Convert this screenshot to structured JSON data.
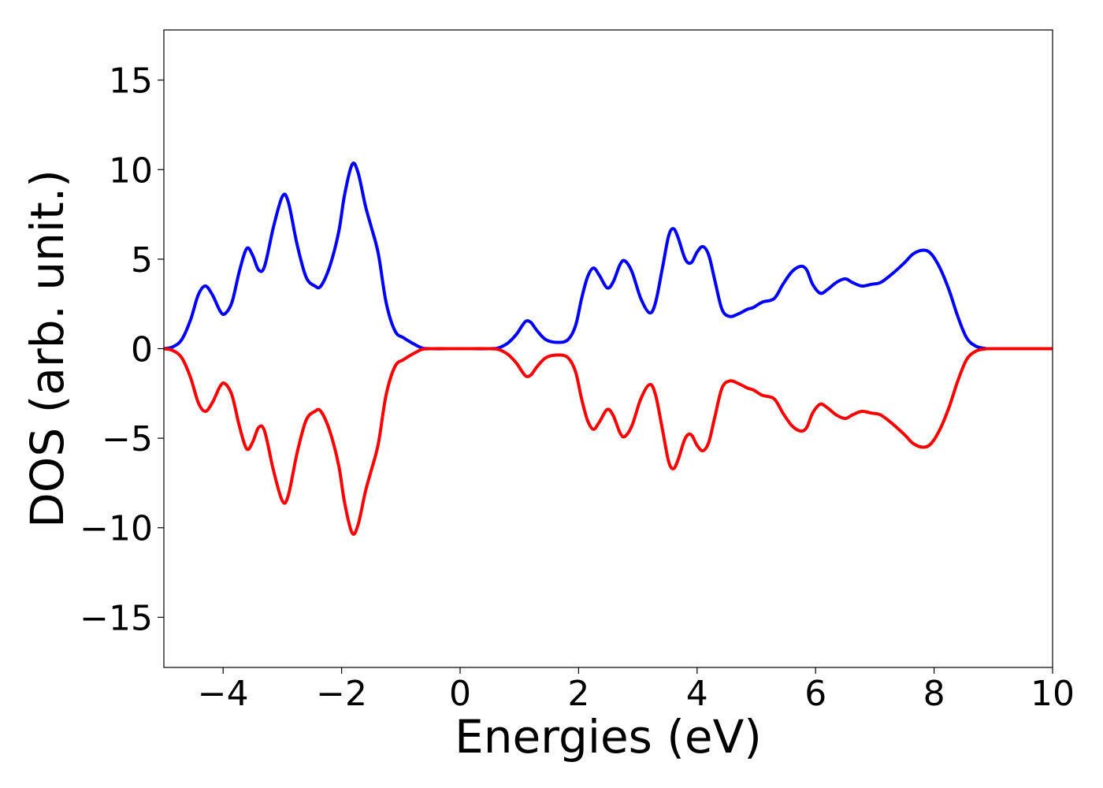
{
  "chart_data": {
    "type": "line",
    "title": "",
    "xlabel": "Energies (eV)",
    "ylabel": "DOS (arb. unit.)",
    "xlim": [
      -5,
      10
    ],
    "ylim": [
      -17.8,
      17.8
    ],
    "grid": false,
    "legend": "none",
    "x_ticks": [
      -4,
      -2,
      0,
      2,
      4,
      6,
      8,
      10
    ],
    "x_tick_labels": [
      "−4",
      "−2",
      "0",
      "2",
      "4",
      "6",
      "8",
      "10"
    ],
    "y_ticks": [
      15,
      10,
      5,
      0,
      -5,
      -10,
      -15
    ],
    "y_tick_labels": [
      "15",
      "10",
      "5",
      "0",
      "−5",
      "−10",
      "−15"
    ],
    "series": [
      {
        "color": "#0000ff",
        "points": [
          [
            -5.0,
            0.0
          ],
          [
            -4.85,
            0.1
          ],
          [
            -4.7,
            0.5
          ],
          [
            -4.55,
            1.6
          ],
          [
            -4.42,
            3.0
          ],
          [
            -4.3,
            3.5
          ],
          [
            -4.18,
            3.0
          ],
          [
            -4.05,
            2.1
          ],
          [
            -3.97,
            1.95
          ],
          [
            -3.85,
            2.6
          ],
          [
            -3.72,
            4.4
          ],
          [
            -3.6,
            5.6
          ],
          [
            -3.5,
            5.2
          ],
          [
            -3.4,
            4.4
          ],
          [
            -3.3,
            4.6
          ],
          [
            -3.15,
            6.8
          ],
          [
            -3.0,
            8.5
          ],
          [
            -2.9,
            8.2
          ],
          [
            -2.75,
            5.8
          ],
          [
            -2.6,
            4.0
          ],
          [
            -2.45,
            3.5
          ],
          [
            -2.35,
            3.5
          ],
          [
            -2.2,
            4.6
          ],
          [
            -2.05,
            6.5
          ],
          [
            -1.95,
            8.6
          ],
          [
            -1.82,
            10.3
          ],
          [
            -1.72,
            9.8
          ],
          [
            -1.6,
            8.0
          ],
          [
            -1.5,
            6.8
          ],
          [
            -1.38,
            5.3
          ],
          [
            -1.25,
            2.6
          ],
          [
            -1.1,
            1.0
          ],
          [
            -0.95,
            0.6
          ],
          [
            -0.8,
            0.3
          ],
          [
            -0.65,
            0.05
          ],
          [
            -0.5,
            0.0
          ],
          [
            0.0,
            0.0
          ],
          [
            0.5,
            0.0
          ],
          [
            0.65,
            0.05
          ],
          [
            0.8,
            0.3
          ],
          [
            0.95,
            0.8
          ],
          [
            1.05,
            1.3
          ],
          [
            1.12,
            1.55
          ],
          [
            1.2,
            1.45
          ],
          [
            1.3,
            1.0
          ],
          [
            1.45,
            0.5
          ],
          [
            1.65,
            0.35
          ],
          [
            1.82,
            0.5
          ],
          [
            1.95,
            1.3
          ],
          [
            2.05,
            2.8
          ],
          [
            2.15,
            4.0
          ],
          [
            2.25,
            4.5
          ],
          [
            2.35,
            4.1
          ],
          [
            2.48,
            3.4
          ],
          [
            2.58,
            3.7
          ],
          [
            2.7,
            4.7
          ],
          [
            2.78,
            4.9
          ],
          [
            2.9,
            4.3
          ],
          [
            3.05,
            2.8
          ],
          [
            3.2,
            2.0
          ],
          [
            3.3,
            2.6
          ],
          [
            3.42,
            4.6
          ],
          [
            3.52,
            6.3
          ],
          [
            3.6,
            6.7
          ],
          [
            3.68,
            6.2
          ],
          [
            3.8,
            5.0
          ],
          [
            3.9,
            4.8
          ],
          [
            4.0,
            5.4
          ],
          [
            4.1,
            5.7
          ],
          [
            4.2,
            5.2
          ],
          [
            4.3,
            3.8
          ],
          [
            4.42,
            2.2
          ],
          [
            4.55,
            1.8
          ],
          [
            4.7,
            1.95
          ],
          [
            4.85,
            2.2
          ],
          [
            4.95,
            2.3
          ],
          [
            5.1,
            2.6
          ],
          [
            5.3,
            2.8
          ],
          [
            5.45,
            3.6
          ],
          [
            5.6,
            4.3
          ],
          [
            5.75,
            4.6
          ],
          [
            5.85,
            4.4
          ],
          [
            5.95,
            3.6
          ],
          [
            6.08,
            3.1
          ],
          [
            6.2,
            3.3
          ],
          [
            6.35,
            3.7
          ],
          [
            6.5,
            3.9
          ],
          [
            6.62,
            3.7
          ],
          [
            6.78,
            3.5
          ],
          [
            6.95,
            3.6
          ],
          [
            7.1,
            3.7
          ],
          [
            7.3,
            4.2
          ],
          [
            7.5,
            4.8
          ],
          [
            7.65,
            5.3
          ],
          [
            7.82,
            5.5
          ],
          [
            7.95,
            5.3
          ],
          [
            8.1,
            4.5
          ],
          [
            8.25,
            3.3
          ],
          [
            8.4,
            1.8
          ],
          [
            8.55,
            0.6
          ],
          [
            8.7,
            0.15
          ],
          [
            8.85,
            0.02
          ],
          [
            9.0,
            0.0
          ],
          [
            10.0,
            0.0
          ]
        ]
      },
      {
        "color": "#ff0000",
        "points": [
          [
            -5.0,
            0.0
          ],
          [
            -4.85,
            -0.1
          ],
          [
            -4.7,
            -0.5
          ],
          [
            -4.55,
            -1.6
          ],
          [
            -4.42,
            -3.0
          ],
          [
            -4.3,
            -3.5
          ],
          [
            -4.18,
            -3.0
          ],
          [
            -4.05,
            -2.1
          ],
          [
            -3.97,
            -1.95
          ],
          [
            -3.85,
            -2.6
          ],
          [
            -3.72,
            -4.4
          ],
          [
            -3.6,
            -5.6
          ],
          [
            -3.5,
            -5.2
          ],
          [
            -3.4,
            -4.4
          ],
          [
            -3.3,
            -4.6
          ],
          [
            -3.15,
            -6.8
          ],
          [
            -3.0,
            -8.5
          ],
          [
            -2.9,
            -8.2
          ],
          [
            -2.75,
            -5.8
          ],
          [
            -2.6,
            -4.0
          ],
          [
            -2.45,
            -3.5
          ],
          [
            -2.35,
            -3.5
          ],
          [
            -2.2,
            -4.6
          ],
          [
            -2.05,
            -6.5
          ],
          [
            -1.95,
            -8.6
          ],
          [
            -1.82,
            -10.3
          ],
          [
            -1.72,
            -9.8
          ],
          [
            -1.6,
            -8.0
          ],
          [
            -1.5,
            -6.8
          ],
          [
            -1.38,
            -5.3
          ],
          [
            -1.25,
            -2.6
          ],
          [
            -1.1,
            -1.0
          ],
          [
            -0.95,
            -0.6
          ],
          [
            -0.8,
            -0.3
          ],
          [
            -0.65,
            -0.05
          ],
          [
            -0.5,
            0.0
          ],
          [
            0.0,
            0.0
          ],
          [
            0.5,
            0.0
          ],
          [
            0.65,
            -0.05
          ],
          [
            0.8,
            -0.3
          ],
          [
            0.95,
            -0.8
          ],
          [
            1.05,
            -1.3
          ],
          [
            1.12,
            -1.55
          ],
          [
            1.2,
            -1.45
          ],
          [
            1.3,
            -1.0
          ],
          [
            1.45,
            -0.5
          ],
          [
            1.65,
            -0.35
          ],
          [
            1.82,
            -0.5
          ],
          [
            1.95,
            -1.3
          ],
          [
            2.05,
            -2.8
          ],
          [
            2.15,
            -4.0
          ],
          [
            2.25,
            -4.5
          ],
          [
            2.35,
            -4.1
          ],
          [
            2.48,
            -3.4
          ],
          [
            2.58,
            -3.7
          ],
          [
            2.7,
            -4.7
          ],
          [
            2.78,
            -4.9
          ],
          [
            2.9,
            -4.3
          ],
          [
            3.05,
            -2.8
          ],
          [
            3.2,
            -2.0
          ],
          [
            3.3,
            -2.6
          ],
          [
            3.42,
            -4.6
          ],
          [
            3.52,
            -6.3
          ],
          [
            3.6,
            -6.7
          ],
          [
            3.68,
            -6.2
          ],
          [
            3.8,
            -5.0
          ],
          [
            3.9,
            -4.8
          ],
          [
            4.0,
            -5.4
          ],
          [
            4.1,
            -5.7
          ],
          [
            4.2,
            -5.2
          ],
          [
            4.3,
            -3.8
          ],
          [
            4.42,
            -2.2
          ],
          [
            4.55,
            -1.8
          ],
          [
            4.7,
            -1.95
          ],
          [
            4.85,
            -2.2
          ],
          [
            4.95,
            -2.3
          ],
          [
            5.1,
            -2.6
          ],
          [
            5.3,
            -2.8
          ],
          [
            5.45,
            -3.6
          ],
          [
            5.6,
            -4.3
          ],
          [
            5.75,
            -4.6
          ],
          [
            5.85,
            -4.4
          ],
          [
            5.95,
            -3.6
          ],
          [
            6.08,
            -3.1
          ],
          [
            6.2,
            -3.3
          ],
          [
            6.35,
            -3.7
          ],
          [
            6.5,
            -3.9
          ],
          [
            6.62,
            -3.7
          ],
          [
            6.78,
            -3.5
          ],
          [
            6.95,
            -3.6
          ],
          [
            7.1,
            -3.7
          ],
          [
            7.3,
            -4.2
          ],
          [
            7.5,
            -4.8
          ],
          [
            7.65,
            -5.3
          ],
          [
            7.82,
            -5.5
          ],
          [
            7.95,
            -5.3
          ],
          [
            8.1,
            -4.5
          ],
          [
            8.25,
            -3.3
          ],
          [
            8.4,
            -1.8
          ],
          [
            8.55,
            -0.6
          ],
          [
            8.7,
            -0.15
          ],
          [
            8.85,
            -0.02
          ],
          [
            9.0,
            0.0
          ],
          [
            10.0,
            0.0
          ]
        ]
      }
    ]
  }
}
